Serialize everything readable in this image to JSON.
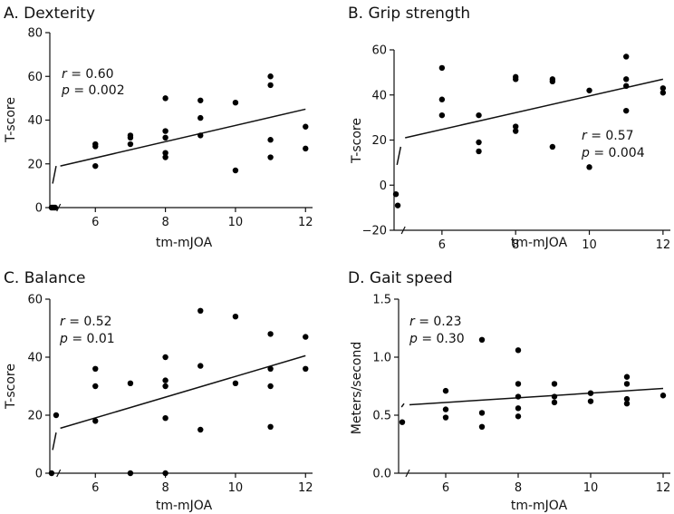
{
  "chart_data": [
    {
      "type": "scatter",
      "panel_label": "A.",
      "title": "Dexterity",
      "xlabel": "tm-mJOA",
      "ylabel": "T-score",
      "xticks": [
        "6",
        "8",
        "10",
        "12"
      ],
      "yticks": [
        "0",
        "20",
        "40",
        "60",
        "80"
      ],
      "xlim": [
        4.7,
        12.2
      ],
      "ylim": [
        0,
        80
      ],
      "annotation": {
        "r_label": "r",
        "r_value": " = 0.60",
        "p_label": "p",
        "p_value": " = 0.002"
      },
      "points": [
        {
          "x": 4.75,
          "y": 0
        },
        {
          "x": 4.8,
          "y": 0
        },
        {
          "x": 4.85,
          "y": 0
        },
        {
          "x": 6,
          "y": 19
        },
        {
          "x": 6,
          "y": 28
        },
        {
          "x": 6,
          "y": 29
        },
        {
          "x": 7,
          "y": 29
        },
        {
          "x": 7,
          "y": 32
        },
        {
          "x": 7,
          "y": 33
        },
        {
          "x": 8,
          "y": 23
        },
        {
          "x": 8,
          "y": 25
        },
        {
          "x": 8,
          "y": 32
        },
        {
          "x": 8,
          "y": 35
        },
        {
          "x": 8,
          "y": 50
        },
        {
          "x": 9,
          "y": 33
        },
        {
          "x": 9,
          "y": 41
        },
        {
          "x": 9,
          "y": 49
        },
        {
          "x": 10,
          "y": 17
        },
        {
          "x": 10,
          "y": 48
        },
        {
          "x": 11,
          "y": 23
        },
        {
          "x": 11,
          "y": 31
        },
        {
          "x": 11,
          "y": 56
        },
        {
          "x": 11,
          "y": 60
        },
        {
          "x": 12,
          "y": 27
        },
        {
          "x": 12,
          "y": 37
        }
      ],
      "fit": {
        "x": [
          5,
          12
        ],
        "y": [
          19,
          45
        ]
      },
      "break": {
        "x": [
          4.78,
          4.88
        ],
        "y": [
          11,
          19
        ]
      }
    },
    {
      "type": "scatter",
      "panel_label": "B.",
      "title": "Grip strength",
      "xlabel": "tm-mJOA",
      "ylabel": "T-score",
      "xticks": [
        "6",
        "8",
        "10",
        "12"
      ],
      "yticks": [
        "−20",
        "0",
        "20",
        "40",
        "60"
      ],
      "xlim": [
        4.7,
        12.2
      ],
      "ylim": [
        -20,
        60
      ],
      "annotation": {
        "r_label": "r",
        "r_value": " = 0.57",
        "p_label": "p",
        "p_value": " = 0.004"
      },
      "points": [
        {
          "x": 4.75,
          "y": -4
        },
        {
          "x": 4.8,
          "y": -9
        },
        {
          "x": 6,
          "y": 31
        },
        {
          "x": 6,
          "y": 38
        },
        {
          "x": 6,
          "y": 52
        },
        {
          "x": 7,
          "y": 15
        },
        {
          "x": 7,
          "y": 19
        },
        {
          "x": 7,
          "y": 31
        },
        {
          "x": 8,
          "y": 24
        },
        {
          "x": 8,
          "y": 26
        },
        {
          "x": 8,
          "y": 47
        },
        {
          "x": 8,
          "y": 48
        },
        {
          "x": 9,
          "y": 17
        },
        {
          "x": 9,
          "y": 46
        },
        {
          "x": 9,
          "y": 47
        },
        {
          "x": 10,
          "y": 8
        },
        {
          "x": 10,
          "y": 42
        },
        {
          "x": 11,
          "y": 33
        },
        {
          "x": 11,
          "y": 44
        },
        {
          "x": 11,
          "y": 47
        },
        {
          "x": 11,
          "y": 57
        },
        {
          "x": 12,
          "y": 41
        },
        {
          "x": 12,
          "y": 43
        }
      ],
      "fit": {
        "x": [
          5,
          12
        ],
        "y": [
          21,
          47
        ]
      },
      "break": {
        "x": [
          4.78,
          4.88
        ],
        "y": [
          9,
          17
        ]
      }
    },
    {
      "type": "scatter",
      "panel_label": "C.",
      "title": "Balance",
      "xlabel": "tm-mJOA",
      "ylabel": "T-score",
      "xticks": [
        "6",
        "8",
        "10",
        "12"
      ],
      "yticks": [
        "0",
        "20",
        "40",
        "60"
      ],
      "xlim": [
        4.7,
        12.2
      ],
      "ylim": [
        0,
        60
      ],
      "annotation": {
        "r_label": "r",
        "r_value": " = 0.52",
        "p_label": "p",
        "p_value": " = 0.01"
      },
      "points": [
        {
          "x": 4.75,
          "y": 0
        },
        {
          "x": 4.88,
          "y": 20
        },
        {
          "x": 6,
          "y": 18
        },
        {
          "x": 6,
          "y": 30
        },
        {
          "x": 6,
          "y": 36
        },
        {
          "x": 7,
          "y": 0
        },
        {
          "x": 7,
          "y": 31
        },
        {
          "x": 8,
          "y": 0
        },
        {
          "x": 8,
          "y": 19
        },
        {
          "x": 8,
          "y": 30
        },
        {
          "x": 8,
          "y": 32
        },
        {
          "x": 8,
          "y": 40
        },
        {
          "x": 9,
          "y": 15
        },
        {
          "x": 9,
          "y": 37
        },
        {
          "x": 9,
          "y": 56
        },
        {
          "x": 10,
          "y": 31
        },
        {
          "x": 10,
          "y": 54
        },
        {
          "x": 11,
          "y": 16
        },
        {
          "x": 11,
          "y": 30
        },
        {
          "x": 11,
          "y": 36
        },
        {
          "x": 11,
          "y": 48
        },
        {
          "x": 12,
          "y": 36
        },
        {
          "x": 12,
          "y": 47
        }
      ],
      "fit": {
        "x": [
          5,
          12
        ],
        "y": [
          15.5,
          40.5
        ]
      },
      "break": {
        "x": [
          4.78,
          4.88
        ],
        "y": [
          8,
          14
        ]
      }
    },
    {
      "type": "scatter",
      "panel_label": "D.",
      "title": "Gait speed",
      "xlabel": "tm-mJOA",
      "ylabel": "Meters/second",
      "xticks": [
        "6",
        "8",
        "10",
        "12"
      ],
      "yticks": [
        "0.0",
        "0.5",
        "1.0",
        "1.5"
      ],
      "xlim": [
        4.7,
        12.2
      ],
      "ylim": [
        0,
        1.5
      ],
      "annotation": {
        "r_label": "r",
        "r_value": " = 0.23",
        "p_label": "p",
        "p_value": " = 0.30"
      },
      "points": [
        {
          "x": 4.8,
          "y": 0.44
        },
        {
          "x": 6,
          "y": 0.48
        },
        {
          "x": 6,
          "y": 0.55
        },
        {
          "x": 6,
          "y": 0.71
        },
        {
          "x": 7,
          "y": 0.4
        },
        {
          "x": 7,
          "y": 0.52
        },
        {
          "x": 7,
          "y": 1.15
        },
        {
          "x": 8,
          "y": 0.49
        },
        {
          "x": 8,
          "y": 0.56
        },
        {
          "x": 8,
          "y": 0.66
        },
        {
          "x": 8,
          "y": 0.77
        },
        {
          "x": 8,
          "y": 1.06
        },
        {
          "x": 9,
          "y": 0.61
        },
        {
          "x": 9,
          "y": 0.66
        },
        {
          "x": 9,
          "y": 0.77
        },
        {
          "x": 10,
          "y": 0.62
        },
        {
          "x": 10,
          "y": 0.69
        },
        {
          "x": 11,
          "y": 0.6
        },
        {
          "x": 11,
          "y": 0.64
        },
        {
          "x": 11,
          "y": 0.77
        },
        {
          "x": 11,
          "y": 0.83
        },
        {
          "x": 12,
          "y": 0.67
        }
      ],
      "fit": {
        "x": [
          5,
          12
        ],
        "y": [
          0.59,
          0.73
        ]
      },
      "break": {
        "x": [
          4.78,
          4.85
        ],
        "y": [
          0.57,
          0.6
        ]
      }
    }
  ]
}
